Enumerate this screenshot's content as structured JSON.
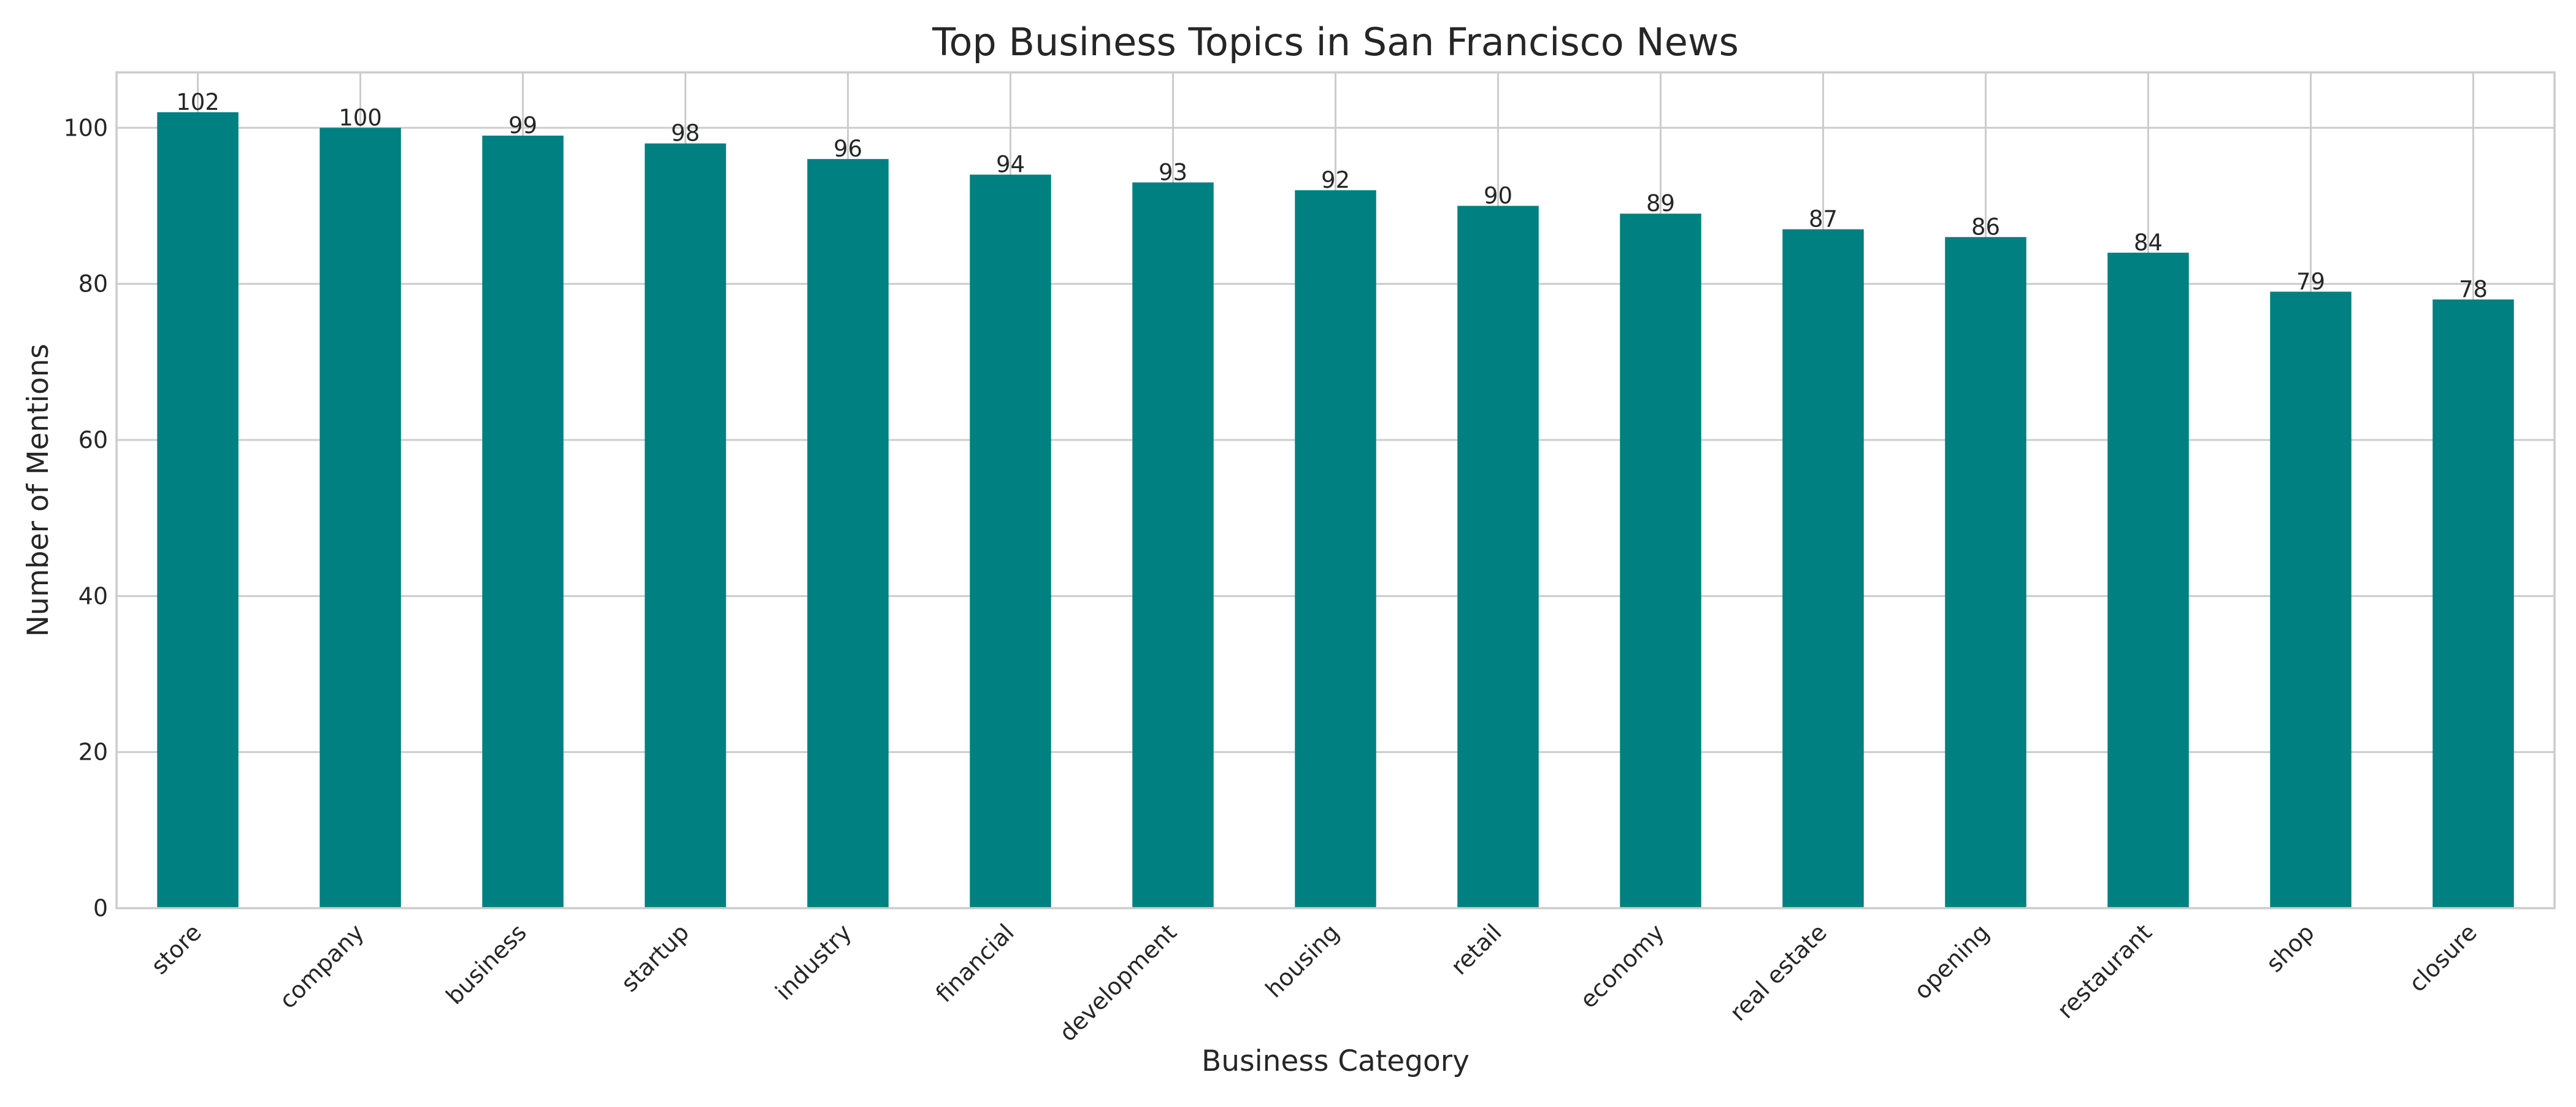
{
  "chart_data": {
    "type": "bar",
    "title": "Top Business Topics in San Francisco News",
    "xlabel": "Business Category",
    "ylabel": "Number of Mentions",
    "categories": [
      "store",
      "company",
      "business",
      "startup",
      "industry",
      "financial",
      "development",
      "housing",
      "retail",
      "economy",
      "real estate",
      "opening",
      "restaurant",
      "shop",
      "closure"
    ],
    "values": [
      102,
      100,
      99,
      98,
      96,
      94,
      93,
      92,
      90,
      89,
      87,
      86,
      84,
      79,
      78
    ],
    "data_labels": [
      "102",
      "100",
      "99",
      "98",
      "96",
      "94",
      "93",
      "92",
      "90",
      "89",
      "87",
      "86",
      "84",
      "79",
      "78"
    ],
    "ylim": [
      0,
      107.1
    ],
    "yticks": [
      0,
      20,
      40,
      60,
      80,
      100
    ],
    "bar_color": "#008080",
    "grid": true,
    "legend": "none"
  }
}
